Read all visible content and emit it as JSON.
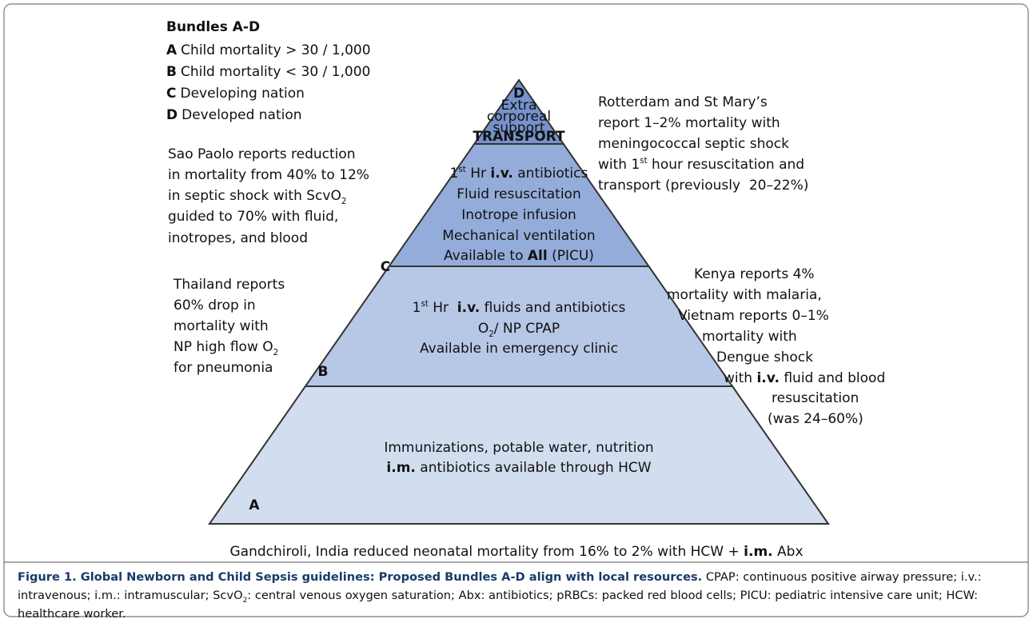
{
  "legend": {
    "title": "Bundles A-D",
    "items": [
      {
        "letter": "A",
        "text": "Child mortality > 30 / 1,000"
      },
      {
        "letter": "B",
        "text": "Child mortality < 30 / 1,000"
      },
      {
        "letter": "C",
        "text": "Developing nation"
      },
      {
        "letter": "D",
        "text": "Developed nation"
      }
    ]
  },
  "pyramid": {
    "d": {
      "letter": "D",
      "lines": [
        "Extra",
        "corporeal",
        "support",
        "TRANSPORT"
      ]
    },
    "c": {
      "letter": "C",
      "lines": [
        [
          "1",
          "st",
          " Hr ",
          "i.v.",
          " antibiotics"
        ],
        "Fluid resuscitation",
        "Inotrope infusion",
        "Mechanical ventilation",
        [
          "Available to ",
          "All",
          " (PICU)"
        ]
      ]
    },
    "b": {
      "letter": "B",
      "lines": [
        [
          "1",
          "st",
          " Hr  ",
          "i.v.",
          " fluids and antibiotics"
        ],
        [
          "O",
          "2",
          "/ NP CPAP"
        ],
        "Available in emergency clinic"
      ]
    },
    "a": {
      "letter": "A",
      "lines": [
        "Immunizations, potable water, nutrition",
        [
          "i.m.",
          " antibiotics available through HCW"
        ]
      ]
    }
  },
  "annotations": {
    "sao_paolo": [
      "Sao Paolo reports reduction",
      "in mortality from 40% to 12%",
      [
        "in septic shock with ScvO",
        "2"
      ],
      "guided to 70% with fluid,",
      "inotropes, and blood"
    ],
    "thailand": [
      "Thailand reports",
      "60% drop in",
      "mortality with",
      [
        "NP high flow O",
        "2"
      ],
      "for pneumonia"
    ],
    "rotterdam": [
      "Rotterdam and St Mary’s",
      "report 1–2% mortality with",
      "meningococcal septic shock",
      [
        "with 1",
        "st",
        " hour resuscitation and"
      ],
      "transport (previously  20–22%)"
    ],
    "kenya": [
      "Kenya reports 4%",
      "mortality with malaria,",
      "Vietnam reports 0–1%",
      "mortality with",
      "Dengue shock",
      [
        "with ",
        "i.v.",
        " fluid and blood"
      ],
      "resuscitation",
      "(was 24–60%)"
    ],
    "bottom": [
      "Gandchiroli, India reduced neonatal mortality from 16% to 2% with HCW + ",
      "i.m.",
      " Abx"
    ]
  },
  "caption": {
    "title": "Figure 1. Global Newborn and Child Sepsis guidelines: Proposed Bundles A-D align with local resources.",
    "body": [
      " CPAP: continuous positive airway pressure; i.v.: intravenous; i.m.: intramuscular; ScvO",
      "2",
      ": central venous oxygen saturation; Abx: antibiotics; pRBCs: packed red blood cells; PICU: pediatric intensive care unit; HCW: healthcare worker."
    ]
  }
}
